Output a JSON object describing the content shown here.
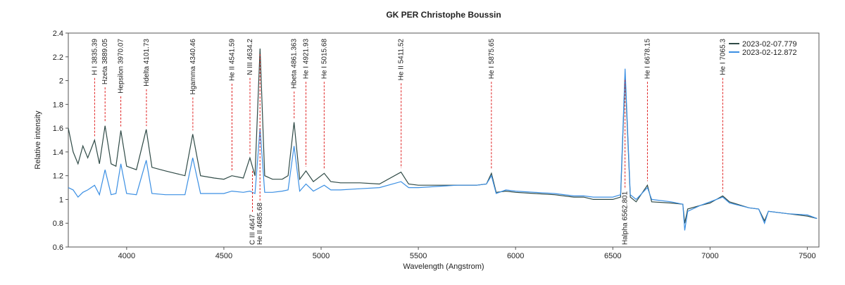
{
  "chart_data": {
    "type": "line",
    "title": "GK PER  Christophe Boussin",
    "x_label": "Wavelength (Angstrom)",
    "y_label": "Relative intensity",
    "xlim": [
      3700,
      7560
    ],
    "ylim": [
      0.6,
      2.4
    ],
    "xticks": [
      4000,
      4500,
      5000,
      5500,
      6000,
      6500,
      7000,
      7500
    ],
    "yticks": [
      0.6,
      0.8,
      1,
      1.2,
      1.4,
      1.6,
      1.8,
      2,
      2.2,
      2.4
    ],
    "legend": "upper right",
    "x": [
      3700,
      3725,
      3750,
      3775,
      3800,
      3835,
      3860,
      3889,
      3920,
      3945,
      3970,
      4000,
      4050,
      4101,
      4130,
      4200,
      4250,
      4300,
      4340,
      4380,
      4450,
      4500,
      4541,
      4600,
      4634,
      4660,
      4686,
      4710,
      4750,
      4800,
      4830,
      4861,
      4890,
      4922,
      4960,
      5016,
      5050,
      5100,
      5200,
      5300,
      5411,
      5450,
      5500,
      5600,
      5700,
      5800,
      5850,
      5876,
      5900,
      5950,
      6000,
      6100,
      6200,
      6300,
      6350,
      6400,
      6450,
      6500,
      6540,
      6563,
      6590,
      6620,
      6678,
      6700,
      6800,
      6860,
      6870,
      6885,
      6950,
      7000,
      7065,
      7100,
      7200,
      7250,
      7280,
      7300,
      7400,
      7500,
      7550
    ],
    "series": [
      {
        "name": "2023-02-07.779",
        "color": "#2f4a46",
        "values": [
          1.6,
          1.4,
          1.3,
          1.45,
          1.35,
          1.5,
          1.3,
          1.62,
          1.3,
          1.28,
          1.58,
          1.28,
          1.25,
          1.59,
          1.27,
          1.24,
          1.22,
          1.2,
          1.55,
          1.2,
          1.18,
          1.17,
          1.2,
          1.18,
          1.35,
          1.2,
          2.27,
          1.2,
          1.17,
          1.17,
          1.2,
          1.65,
          1.17,
          1.24,
          1.15,
          1.22,
          1.15,
          1.14,
          1.14,
          1.13,
          1.23,
          1.13,
          1.12,
          1.12,
          1.12,
          1.12,
          1.13,
          1.22,
          1.06,
          1.07,
          1.06,
          1.05,
          1.04,
          1.02,
          1.02,
          1.0,
          1.0,
          1.0,
          1.02,
          2.05,
          1.02,
          0.98,
          1.12,
          0.98,
          0.97,
          0.96,
          0.8,
          0.92,
          0.95,
          0.97,
          1.03,
          0.98,
          0.93,
          0.92,
          0.82,
          0.9,
          0.88,
          0.86,
          0.84
        ]
      },
      {
        "name": "2023-02-12.872",
        "color": "#3b8fe3",
        "values": [
          1.1,
          1.08,
          1.02,
          1.06,
          1.08,
          1.12,
          1.04,
          1.25,
          1.04,
          1.05,
          1.3,
          1.05,
          1.04,
          1.33,
          1.05,
          1.04,
          1.04,
          1.04,
          1.35,
          1.05,
          1.05,
          1.05,
          1.07,
          1.06,
          1.07,
          1.05,
          1.6,
          1.06,
          1.06,
          1.07,
          1.08,
          1.45,
          1.07,
          1.13,
          1.07,
          1.12,
          1.08,
          1.08,
          1.09,
          1.1,
          1.15,
          1.1,
          1.1,
          1.11,
          1.12,
          1.12,
          1.13,
          1.2,
          1.05,
          1.08,
          1.07,
          1.06,
          1.05,
          1.03,
          1.03,
          1.02,
          1.02,
          1.02,
          1.04,
          2.1,
          1.04,
          1.0,
          1.1,
          1.0,
          0.98,
          0.96,
          0.74,
          0.9,
          0.95,
          0.98,
          1.02,
          0.97,
          0.93,
          0.92,
          0.8,
          0.9,
          0.88,
          0.87,
          0.84
        ]
      }
    ],
    "annotations": [
      {
        "label": "H I 3835.39",
        "x": 3835.39,
        "position": "top"
      },
      {
        "label": "Hzeta 3889.05",
        "x": 3889.05,
        "position": "top"
      },
      {
        "label": "Hepsilon 3970.07",
        "x": 3970.07,
        "position": "top"
      },
      {
        "label": "Hdelta 4101.73",
        "x": 4101.73,
        "position": "top"
      },
      {
        "label": "Hgamma 4340.46",
        "x": 4340.46,
        "position": "top"
      },
      {
        "label": "He II 4541.59",
        "x": 4541.59,
        "position": "top"
      },
      {
        "label": "N III 4634.2",
        "x": 4634.2,
        "position": "top"
      },
      {
        "label": "C III 4647",
        "x": 4647,
        "position": "bottom"
      },
      {
        "label": "He II 4685.68",
        "x": 4685.68,
        "position": "bottom"
      },
      {
        "label": "Hbeta 4861.363",
        "x": 4861.363,
        "position": "top"
      },
      {
        "label": "He I 4921.93",
        "x": 4921.93,
        "position": "top"
      },
      {
        "label": "He I 5015.68",
        "x": 5015.68,
        "position": "top"
      },
      {
        "label": "He II 5411.52",
        "x": 5411.52,
        "position": "top"
      },
      {
        "label": "He I 5875.65",
        "x": 5875.65,
        "position": "top"
      },
      {
        "label": "Halpha 6562.801",
        "x": 6562.801,
        "position": "bottom"
      },
      {
        "label": "He I 6678.15",
        "x": 6678.15,
        "position": "top"
      },
      {
        "label": "He I 7065.3",
        "x": 7065.3,
        "position": "top"
      }
    ]
  }
}
